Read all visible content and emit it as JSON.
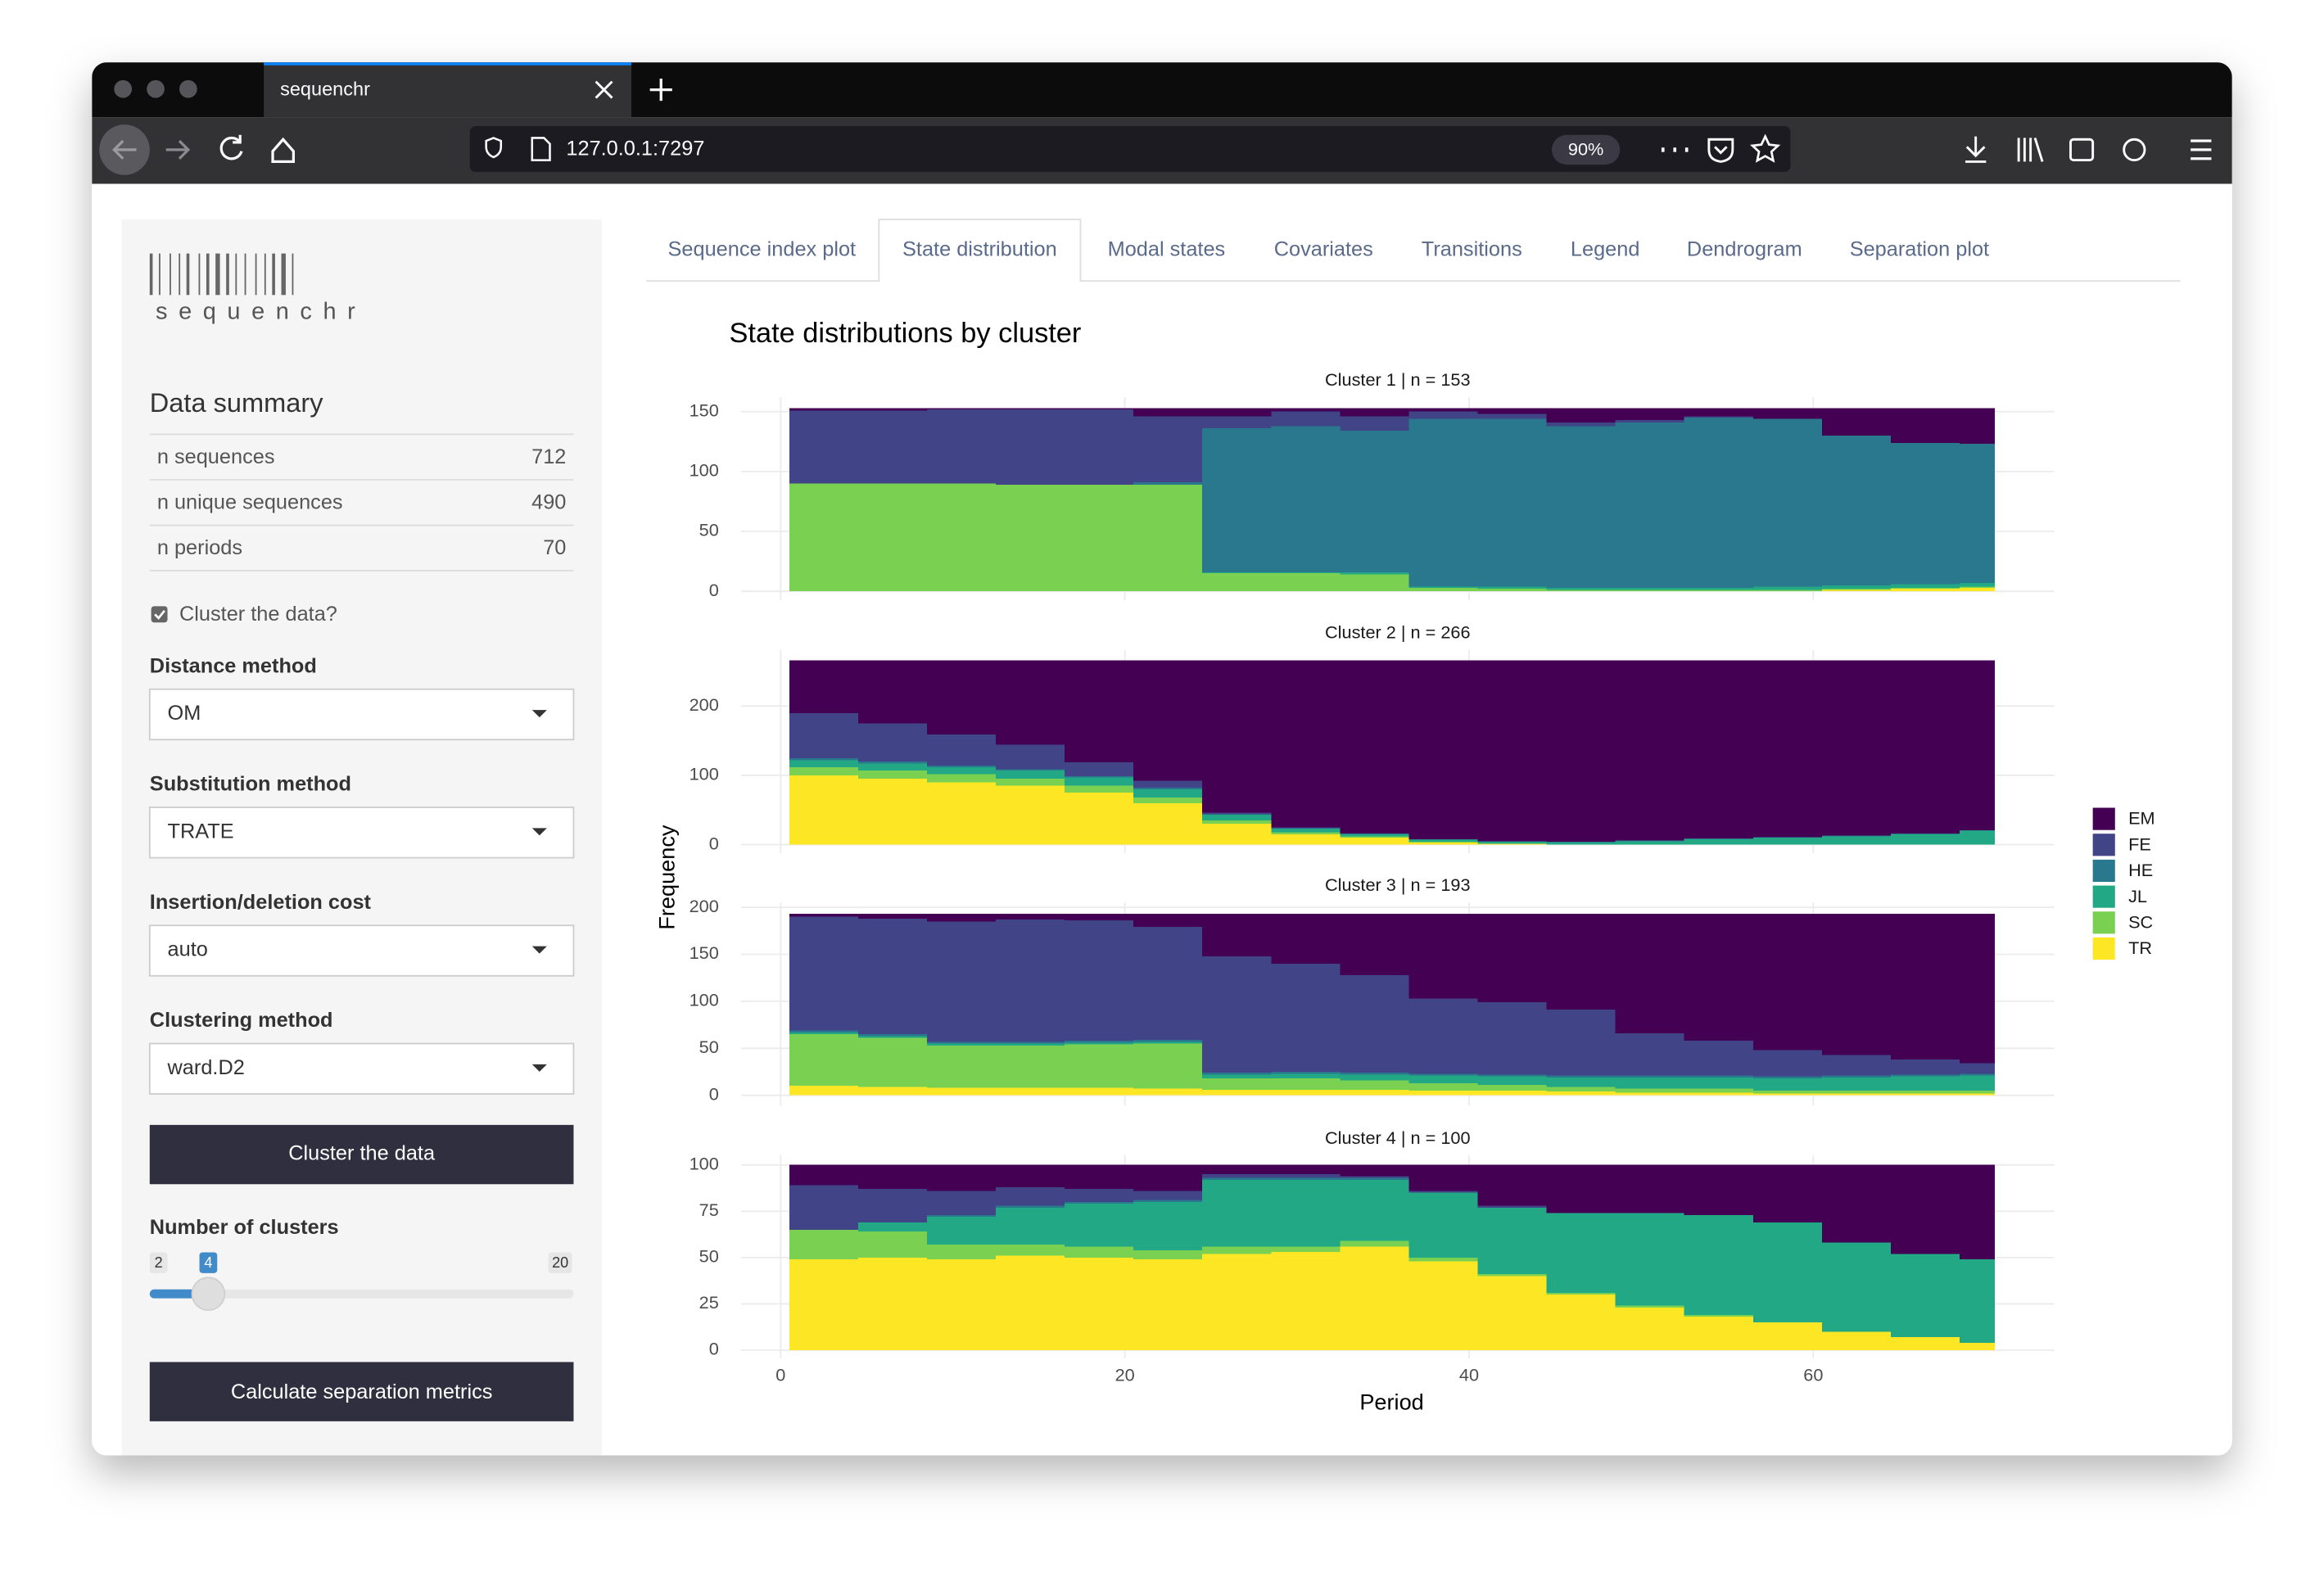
{
  "browser": {
    "tab_title": "sequenchr",
    "url": "127.0.0.1:7297",
    "zoom": "90%"
  },
  "sidebar": {
    "logo": "sequenchr",
    "summary_title": "Data summary",
    "summary_rows": [
      [
        "n sequences",
        712
      ],
      [
        "n unique sequences",
        490
      ],
      [
        "n periods",
        70
      ]
    ],
    "checkbox": {
      "label": "Cluster the data?",
      "checked": true
    },
    "selects": [
      {
        "label": "Distance method",
        "value": "OM"
      },
      {
        "label": "Substitution method",
        "value": "TRATE"
      },
      {
        "label": "Insertion/deletion cost",
        "value": "auto"
      },
      {
        "label": "Clustering method",
        "value": "ward.D2"
      }
    ],
    "cluster_button": "Cluster the data",
    "slider": {
      "label": "Number of clusters",
      "min": 2,
      "value": 4,
      "max": 20
    },
    "separation_button": "Calculate separation metrics"
  },
  "tabs": {
    "items": [
      "Sequence index plot",
      "State distribution",
      "Modal states",
      "Covariates",
      "Transitions",
      "Legend",
      "Dendrogram",
      "Separation plot"
    ],
    "active": 1
  },
  "chart_data": {
    "type": "area",
    "stacked": true,
    "title": "State distributions by cluster",
    "xlabel": "Period",
    "ylabel": "Frequency",
    "x": [
      1,
      5,
      9,
      13,
      17,
      21,
      25,
      29,
      33,
      37,
      41,
      45,
      49,
      53,
      57,
      61,
      65,
      69
    ],
    "xlim": [
      -2.3,
      74
    ],
    "xticks": [
      0,
      20,
      40,
      60
    ],
    "grid": true,
    "facets": [
      {
        "title": "Cluster 1  | n =  153",
        "ylim": [
          -7.5,
          162
        ],
        "yticks": [
          0,
          50,
          100,
          150
        ],
        "series": [
          {
            "name": "EM",
            "color": "#440154",
            "values": [
              2,
              2,
              1,
              1,
              1,
              7,
              7,
              3,
              7,
              3,
              5,
              12,
              10,
              7,
              9,
              23,
              29,
              30
            ]
          },
          {
            "name": "FE",
            "color": "#414487",
            "values": [
              61,
              61,
              62,
              63,
              63,
              55,
              10,
              12,
              12,
              6,
              4,
              3,
              2,
              1,
              0,
              0,
              0,
              0
            ]
          },
          {
            "name": "HE",
            "color": "#2A788E",
            "values": [
              0,
              0,
              0,
              0,
              0,
              2,
              120,
              122,
              118,
              140,
              140,
              135,
              138,
              142,
              140,
              125,
              118,
              116
            ]
          },
          {
            "name": "JL",
            "color": "#22A884",
            "values": [
              0,
              0,
              0,
              0,
              0,
              0,
              1,
              1,
              2,
              1,
              2,
              2,
              2,
              2,
              3,
              3,
              3,
              3
            ]
          },
          {
            "name": "SC",
            "color": "#7AD151",
            "values": [
              90,
              90,
              90,
              89,
              89,
              89,
              15,
              15,
              14,
              3,
              2,
              1,
              1,
              1,
              1,
              1,
              1,
              1
            ]
          },
          {
            "name": "TR",
            "color": "#FDE725",
            "values": [
              0,
              0,
              0,
              0,
              0,
              0,
              0,
              0,
              0,
              0,
              0,
              0,
              0,
              0,
              0,
              1,
              2,
              3
            ]
          }
        ]
      },
      {
        "title": "Cluster 2  | n =  266",
        "ylim": [
          -12,
          281
        ],
        "yticks": [
          0,
          100,
          200
        ],
        "series": [
          {
            "name": "EM",
            "color": "#440154",
            "values": [
              76,
              91,
              107,
              122,
              147,
              174,
              220,
              241,
              250,
              258,
              261,
              262,
              260,
              257,
              255,
              253,
              250,
              245
            ]
          },
          {
            "name": "FE",
            "color": "#414487",
            "values": [
              65,
              55,
              45,
              35,
              20,
              10,
              2,
              1,
              0,
              0,
              0,
              0,
              0,
              0,
              0,
              0,
              0,
              0
            ]
          },
          {
            "name": "HE",
            "color": "#2A788E",
            "values": [
              3,
              3,
              2,
              2,
              2,
              2,
              1,
              1,
              1,
              1,
              1,
              1,
              1,
              1,
              1,
              1,
              1,
              1
            ]
          },
          {
            "name": "JL",
            "color": "#22A884",
            "values": [
              10,
              10,
              10,
              12,
              12,
              12,
              8,
              5,
              3,
              3,
              3,
              3,
              5,
              8,
              10,
              12,
              15,
              20
            ]
          },
          {
            "name": "SC",
            "color": "#7AD151",
            "values": [
              12,
              12,
              12,
              10,
              10,
              8,
              5,
              3,
              2,
              1,
              0,
              0,
              0,
              0,
              0,
              0,
              0,
              0
            ]
          },
          {
            "name": "TR",
            "color": "#FDE725",
            "values": [
              100,
              95,
              90,
              85,
              75,
              60,
              30,
              15,
              10,
              3,
              1,
              0,
              0,
              0,
              0,
              0,
              0,
              0
            ]
          }
        ]
      },
      {
        "title": "Cluster 3  | n =  193",
        "ylim": [
          -11,
          205
        ],
        "yticks": [
          0,
          50,
          100,
          150,
          200
        ],
        "series": [
          {
            "name": "EM",
            "color": "#440154",
            "values": [
              3,
              5,
              8,
              6,
              7,
              14,
              45,
              53,
              65,
              90,
              94,
              102,
              127,
              135,
              145,
              150,
              155,
              159
            ]
          },
          {
            "name": "FE",
            "color": "#414487",
            "values": [
              121,
              123,
              128,
              130,
              128,
              120,
              124,
              115,
              104,
              80,
              77,
              70,
              45,
              37,
              28,
              22,
              16,
              11
            ]
          },
          {
            "name": "HE",
            "color": "#2A788E",
            "values": [
              2,
              2,
              2,
              2,
              2,
              2,
              2,
              2,
              2,
              2,
              2,
              2,
              2,
              2,
              2,
              2,
              2,
              2
            ]
          },
          {
            "name": "JL",
            "color": "#22A884",
            "values": [
              2,
              2,
              2,
              2,
              2,
              2,
              4,
              5,
              6,
              8,
              9,
              10,
              12,
              12,
              13,
              14,
              15,
              16
            ]
          },
          {
            "name": "SC",
            "color": "#7AD151",
            "values": [
              55,
              52,
              45,
              45,
              46,
              48,
              12,
              12,
              10,
              8,
              6,
              5,
              4,
              4,
              3,
              3,
              3,
              3
            ]
          },
          {
            "name": "TR",
            "color": "#FDE725",
            "values": [
              10,
              9,
              8,
              8,
              8,
              7,
              6,
              6,
              6,
              5,
              5,
              4,
              3,
              3,
              2,
              2,
              2,
              2
            ]
          }
        ]
      },
      {
        "title": "Cluster 4  | n =  100",
        "ylim": [
          -4.4,
          105.2
        ],
        "yticks": [
          0,
          25,
          50,
          75,
          100
        ],
        "series": [
          {
            "name": "EM",
            "color": "#440154",
            "values": [
              11,
              13,
              14,
              12,
              13,
              14,
              5,
              5,
              6,
              14,
              22,
              26,
              26,
              27,
              31,
              42,
              48,
              51
            ]
          },
          {
            "name": "FE",
            "color": "#414487",
            "values": [
              24,
              18,
              13,
              10,
              7,
              5,
              2,
              2,
              1,
              1,
              1,
              0,
              0,
              0,
              0,
              0,
              0,
              0
            ]
          },
          {
            "name": "HE",
            "color": "#2A788E",
            "values": [
              0,
              0,
              1,
              1,
              1,
              1,
              1,
              1,
              1,
              0,
              0,
              0,
              0,
              0,
              0,
              0,
              0,
              0
            ]
          },
          {
            "name": "JL",
            "color": "#22A884",
            "values": [
              0,
              5,
              15,
              20,
              23,
              26,
              36,
              36,
              33,
              35,
              36,
              43,
              50,
              54,
              54,
              48,
              45,
              45
            ]
          },
          {
            "name": "SC",
            "color": "#7AD151",
            "values": [
              16,
              14,
              8,
              6,
              6,
              5,
              4,
              3,
              3,
              2,
              1,
              1,
              1,
              1,
              0,
              0,
              0,
              0
            ]
          },
          {
            "name": "TR",
            "color": "#FDE725",
            "values": [
              49,
              50,
              49,
              51,
              50,
              49,
              52,
              53,
              56,
              48,
              40,
              30,
              23,
              18,
              15,
              10,
              7,
              4
            ]
          }
        ]
      }
    ]
  }
}
